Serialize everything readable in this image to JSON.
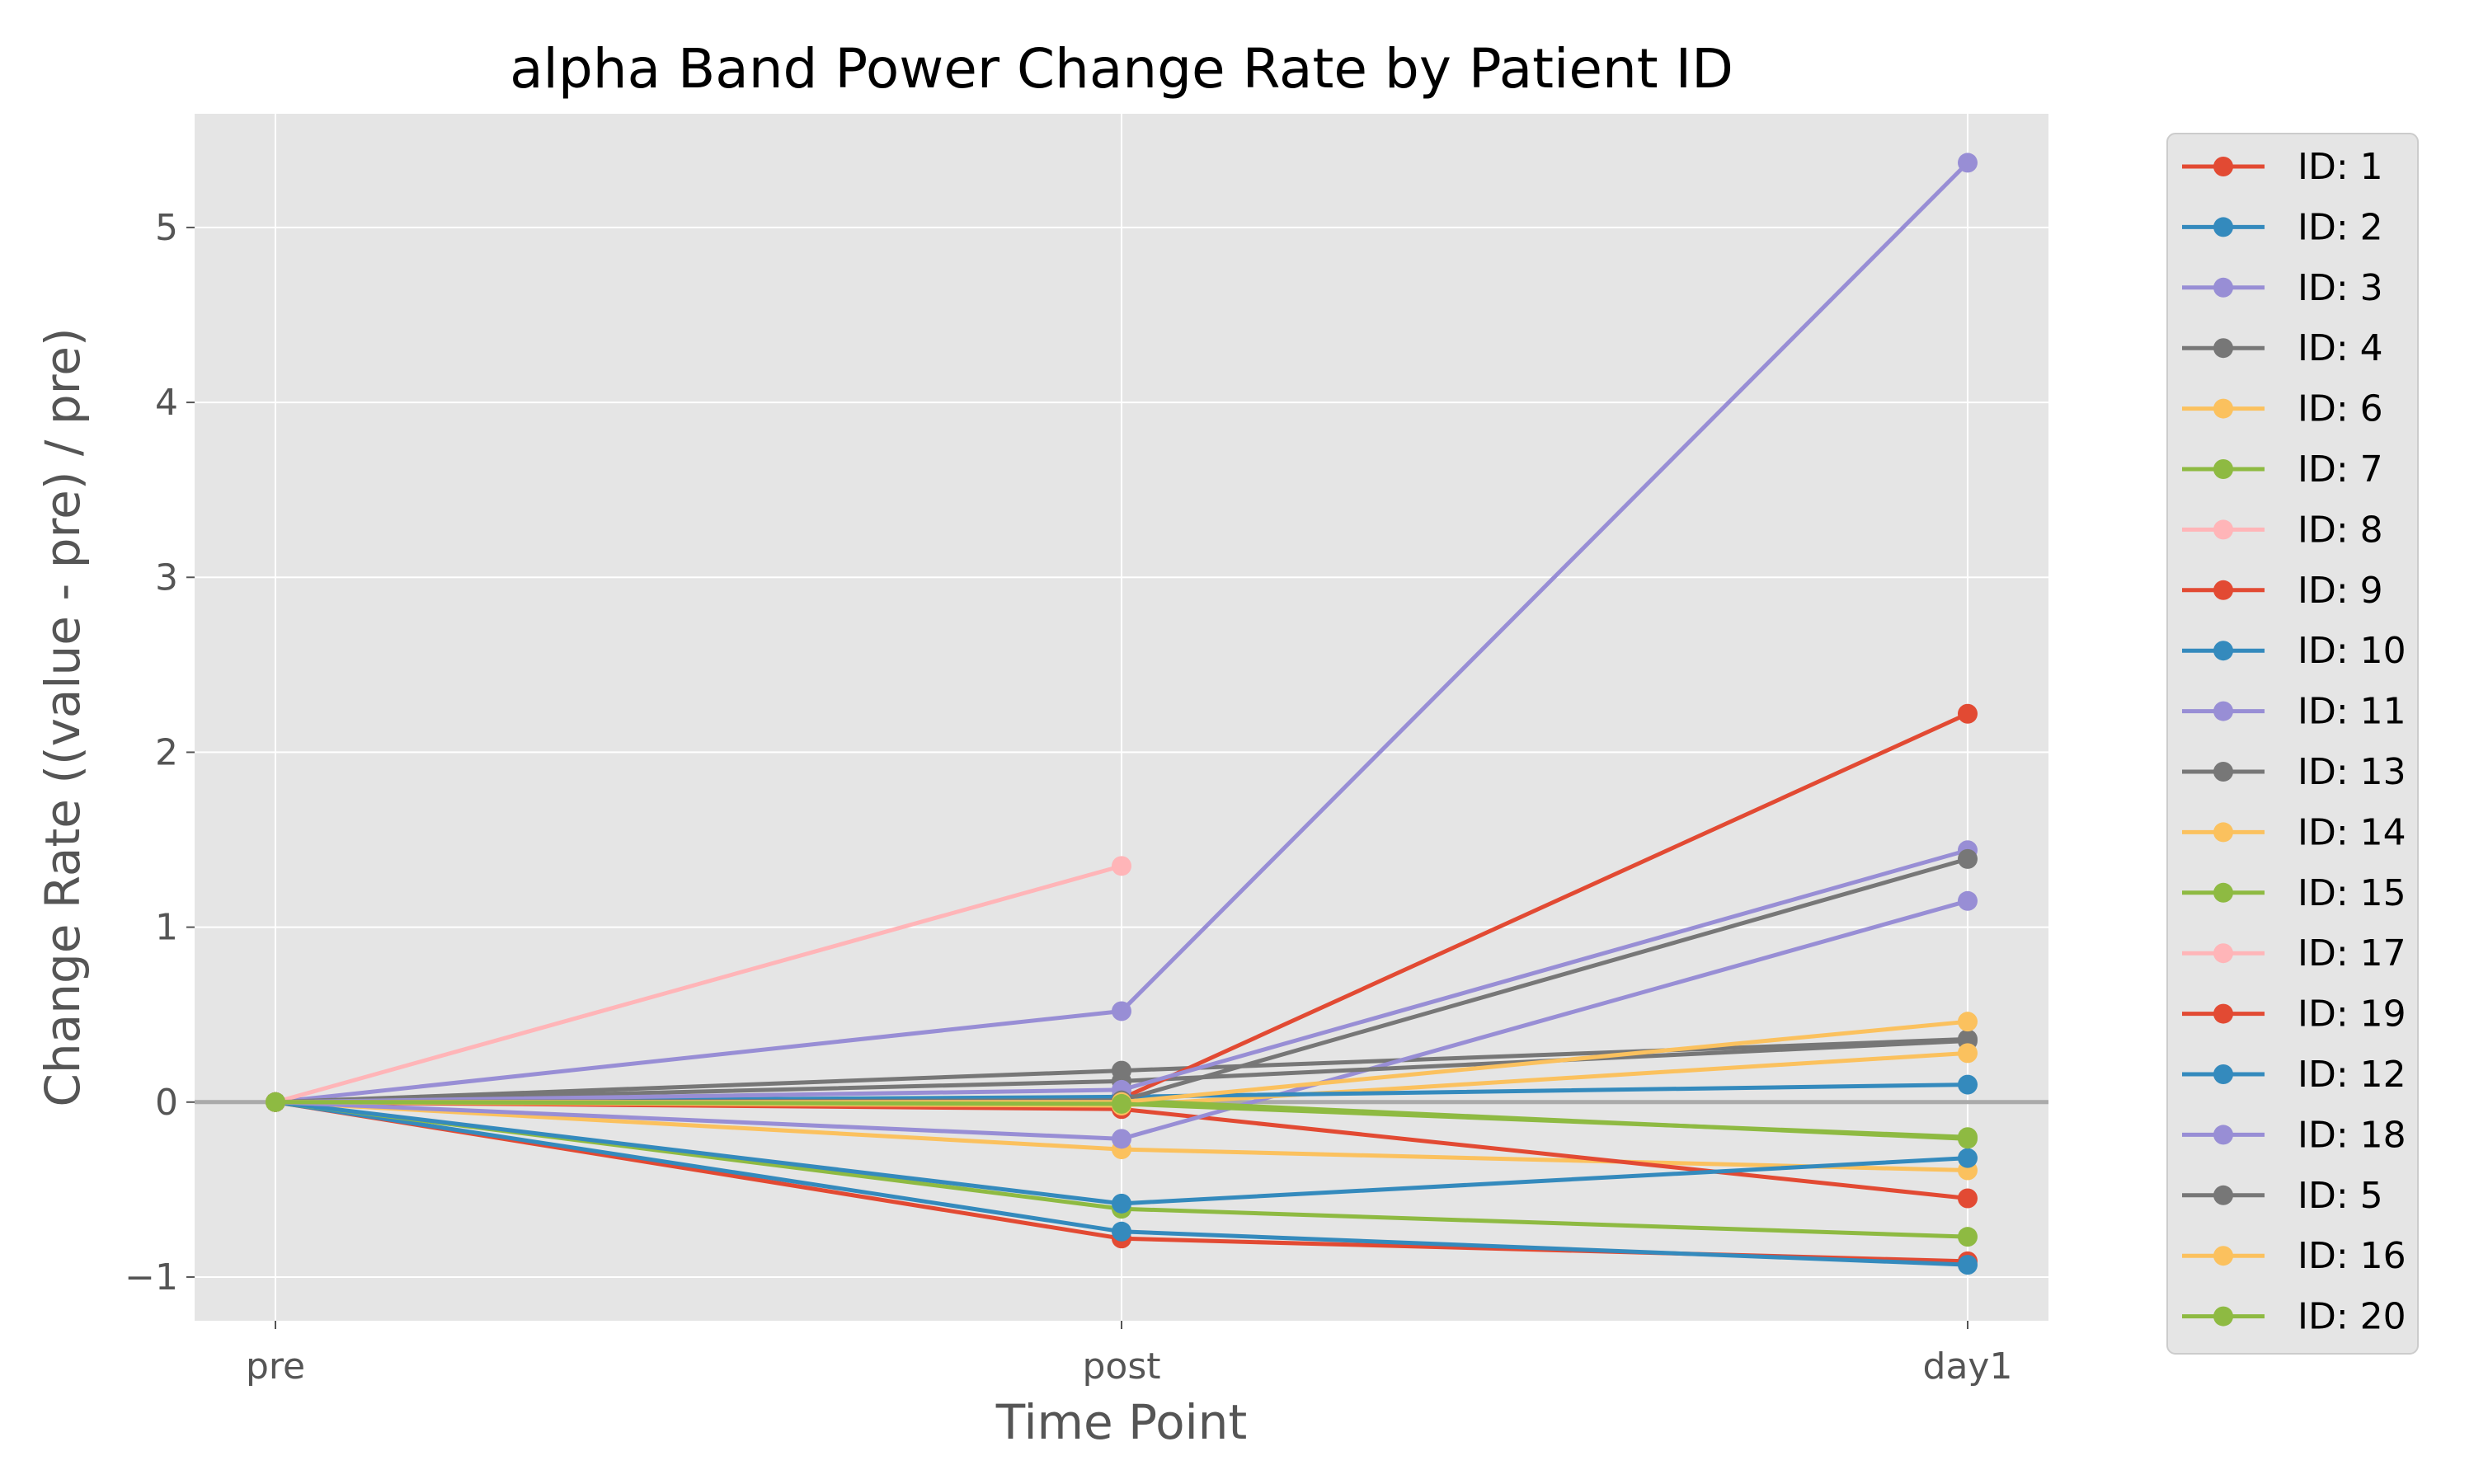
{
  "chart_data": {
    "type": "line",
    "title": "alpha Band Power Change Rate by Patient ID",
    "xlabel": "Time Point",
    "ylabel": "Change Rate ((value - pre) / pre)",
    "categories": [
      "pre",
      "post",
      "day1"
    ],
    "ylim": [
      -1.25,
      5.65
    ],
    "yticks": [
      -1,
      0,
      1,
      2,
      3,
      4,
      5
    ],
    "ytick_labels": [
      "−1",
      "0",
      "1",
      "2",
      "3",
      "4",
      "5"
    ],
    "grid": true,
    "legend_position": "outside-right",
    "reference_line_y": 0,
    "colors": {
      "background": "#E5E5E5",
      "grid": "#FFFFFF",
      "reference_line": "#AAAAAA",
      "text": "#555555",
      "title": "#000000"
    },
    "series": [
      {
        "name": "ID: 1",
        "color": "#E24A33",
        "values": [
          0,
          -0.78,
          -0.91
        ]
      },
      {
        "name": "ID: 2",
        "color": "#348ABD",
        "values": [
          0,
          -0.74,
          -0.93
        ]
      },
      {
        "name": "ID: 3",
        "color": "#988ED5",
        "values": [
          0,
          0.52,
          5.37
        ]
      },
      {
        "name": "ID: 4",
        "color": "#777777",
        "values": [
          0,
          0.18,
          0.36
        ]
      },
      {
        "name": "ID: 6",
        "color": "#FBC15E",
        "values": [
          0,
          -0.27,
          -0.39
        ]
      },
      {
        "name": "ID: 7",
        "color": "#8EBA42",
        "values": [
          0,
          -0.61,
          -0.77
        ]
      },
      {
        "name": "ID: 8",
        "color": "#FFB5B8",
        "values": [
          0,
          1.35,
          null
        ]
      },
      {
        "name": "ID: 9",
        "color": "#E24A33",
        "values": [
          0,
          -0.04,
          -0.55
        ]
      },
      {
        "name": "ID: 10",
        "color": "#348ABD",
        "values": [
          0,
          -0.58,
          -0.32
        ]
      },
      {
        "name": "ID: 11",
        "color": "#988ED5",
        "values": [
          0,
          -0.21,
          1.15
        ]
      },
      {
        "name": "ID: 13",
        "color": "#777777",
        "values": [
          0,
          0.12,
          0.35
        ]
      },
      {
        "name": "ID: 14",
        "color": "#FBC15E",
        "values": [
          0,
          -0.02,
          0.28
        ]
      },
      {
        "name": "ID: 15",
        "color": "#8EBA42",
        "values": [
          0,
          0.01,
          -0.21
        ]
      },
      {
        "name": "ID: 17",
        "color": "#FFB5B8",
        "values": [
          0,
          null,
          null
        ]
      },
      {
        "name": "ID: 19",
        "color": "#E24A33",
        "values": [
          0,
          0.02,
          2.22
        ]
      },
      {
        "name": "ID: 12",
        "color": "#348ABD",
        "values": [
          0,
          0.03,
          0.1
        ]
      },
      {
        "name": "ID: 18",
        "color": "#988ED5",
        "values": [
          0,
          0.07,
          1.44
        ]
      },
      {
        "name": "ID: 5",
        "color": "#777777",
        "values": [
          0,
          0.01,
          1.39
        ]
      },
      {
        "name": "ID: 16",
        "color": "#FBC15E",
        "values": [
          0,
          0.0,
          0.46
        ]
      },
      {
        "name": "ID: 20",
        "color": "#8EBA42",
        "values": [
          0,
          -0.01,
          -0.2
        ]
      }
    ]
  }
}
